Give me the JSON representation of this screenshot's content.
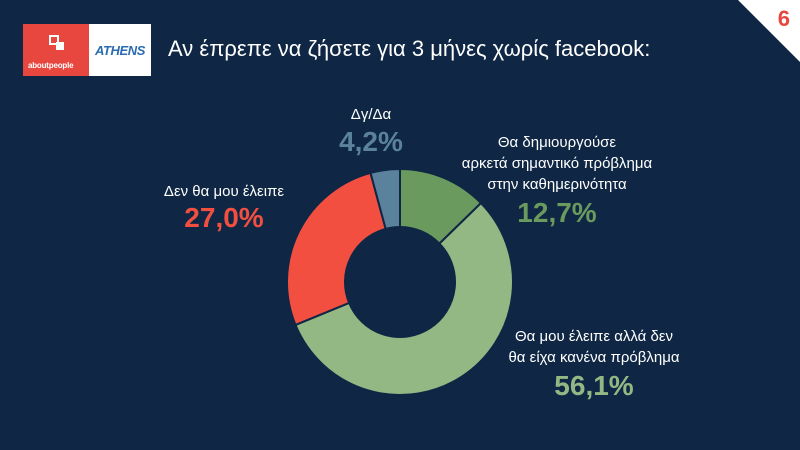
{
  "header": {
    "title": "Αν έπρεπε να ζήσετε για 3 μήνες χωρίς facebook:",
    "logo_left": "aboutpeople",
    "logo_right": "ATHENS",
    "slide_number": "6"
  },
  "colors": {
    "background": "#0f2744",
    "accent": "#e8473f"
  },
  "chart_data": {
    "type": "pie",
    "title": "Αν έπρεπε να ζήσετε για 3 μήνες χωρίς facebook:",
    "slices": [
      {
        "label_lines": [
          "Θα δημιουργούσε",
          "αρκετά σημαντικό πρόβλημα",
          "στην καθημερινότητα"
        ],
        "value": 12.7,
        "display": "12,7%",
        "color": "#6a9a5d"
      },
      {
        "label_lines": [
          "Θα μου έλειπε αλλά δεν",
          "θα είχα κανένα πρόβλημα"
        ],
        "value": 56.1,
        "display": "56,1%",
        "color": "#93b884"
      },
      {
        "label_lines": [
          "Δεν θα μου έλειπε"
        ],
        "value": 27.0,
        "display": "27,0%",
        "color": "#f24f41"
      },
      {
        "label_lines": [
          "Δγ/Δα"
        ],
        "value": 4.2,
        "display": "4,2%",
        "color": "#5b829d"
      }
    ]
  }
}
